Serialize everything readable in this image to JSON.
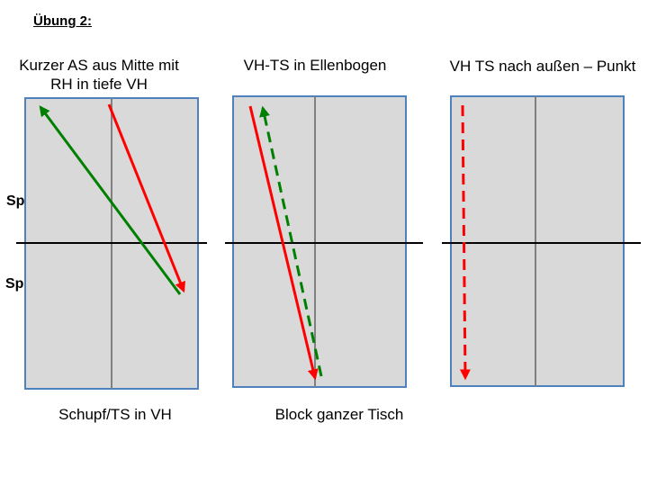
{
  "title": "Übung 2:",
  "players": {
    "a": "Spieler A",
    "b": "Spieler B"
  },
  "diagrams": [
    {
      "heading_line1": "Kurzer AS aus Mitte mit",
      "heading_line2": "RH in tiefe VH",
      "caption": "Schupf/TS in VH"
    },
    {
      "heading_line1": "VH-TS in Ellenbogen",
      "heading_line2": "",
      "caption": "Block ganzer Tisch"
    },
    {
      "heading_line1": "VH TS nach außen – Punkt",
      "heading_line2": "",
      "caption": ""
    }
  ],
  "colors": {
    "table_fill": "#d9d9d9",
    "table_border": "#4f81bd",
    "center_line": "#808080",
    "net": "#000000",
    "red_arrow": "#ff0000",
    "green_arrow": "#008000"
  }
}
